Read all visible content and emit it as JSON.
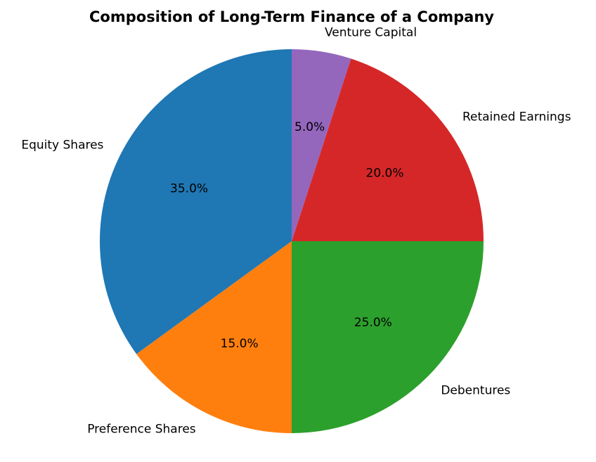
{
  "chart_data": {
    "type": "pie",
    "title": "Composition of Long-Term Finance of a Company",
    "categories": [
      "Equity Shares",
      "Preference Shares",
      "Debentures",
      "Retained Earnings",
      "Venture Capital"
    ],
    "values": [
      35,
      15,
      25,
      20,
      5
    ],
    "value_labels": [
      "35.0%",
      "15.0%",
      "25.0%",
      "20.0%",
      "5.0%"
    ],
    "colors": [
      "#1f77b4",
      "#ff7f0e",
      "#2ca02c",
      "#d62728",
      "#9467bd"
    ]
  }
}
